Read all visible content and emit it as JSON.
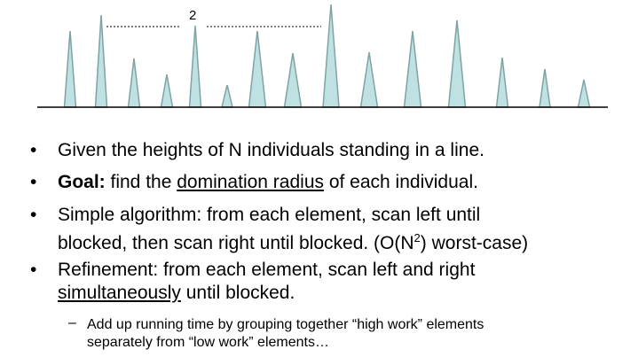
{
  "diagram": {
    "heights": [
      86,
      104,
      55,
      37,
      92,
      25,
      86,
      61,
      116,
      62,
      86,
      98,
      56,
      43,
      31
    ],
    "label": "2",
    "fill_color": "#bfe1e2",
    "stroke_color": "#7fa3a3"
  },
  "bullets": [
    {
      "text": "Given the heights of N individuals standing in a line."
    },
    {
      "bold": "Goal:",
      "pre": " find the ",
      "underlined": "domination radius",
      "post": " of each individual."
    },
    {
      "line1": "Simple algorithm: from each element, scan left until",
      "line2a": "blocked, then scan right until blocked.  (O(N",
      "sup": "2",
      "line2b": ") worst-case)"
    },
    {
      "line1": "Refinement: from each element, scan left and right",
      "underlined": "simultaneously",
      "post": " until blocked."
    }
  ],
  "sub_bullet": {
    "dash": "–",
    "line1": "Add up running time by grouping together “high work” elements",
    "line2": "separately from “low work” elements…"
  }
}
